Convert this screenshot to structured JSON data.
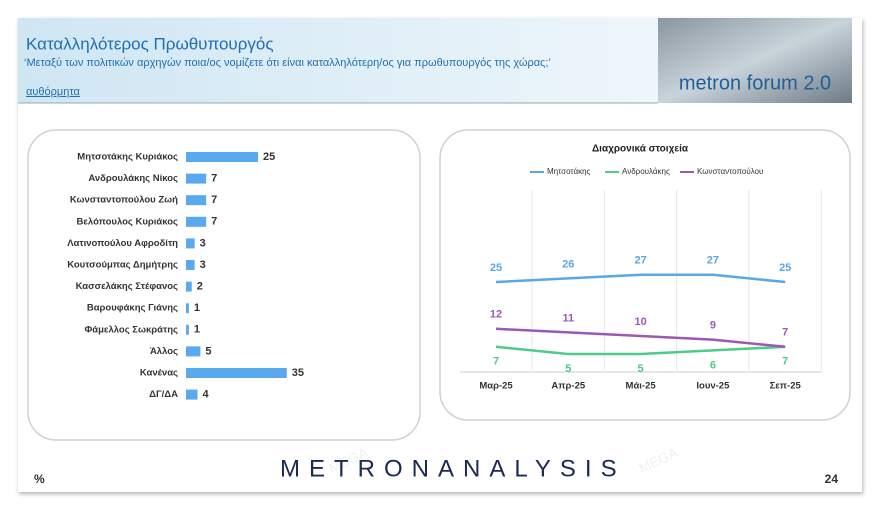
{
  "header": {
    "title": "Καταλληλότερος Πρωθυπουργός",
    "subtitle": "‘Μεταξύ των πολιτικών αρχηγών ποια/ος νομίζετε ότι είναι καταλληλότερη/ος για πρωθυπουργός της χώρας;’",
    "note": "αυθόρμητα",
    "logo": "metron forum 2.0"
  },
  "watermark": "MEGA",
  "chart_data": [
    {
      "type": "hbar",
      "color": "#5aa9ee",
      "categories": [
        "Μητσοτάκης Κυριάκος",
        "Ανδρουλάκης Νίκος",
        "Κωνσταντοπούλου Ζωή",
        "Βελόπουλος Κυριάκος",
        "Λατινοπούλου Αφροδίτη",
        "Κουτσούμπας Δημήτρης",
        "Κασσελάκης Στέφανος",
        "Βαρουφάκης Γιάνης",
        "Φάμελλος Σωκράτης",
        "Άλλος",
        "Κανένας",
        "ΔΓ/ΔΑ"
      ],
      "values": [
        25,
        7,
        7,
        7,
        3,
        3,
        2,
        1,
        1,
        5,
        35,
        4
      ]
    },
    {
      "type": "line",
      "title": "Διαχρονικά στοιχεία",
      "categories": [
        "Μαρ-25",
        "Απρ-25",
        "Μάι-25",
        "Ιουν-25",
        "Σεπ-25"
      ],
      "series": [
        {
          "name": "Μητσοτάκης",
          "color": "#5aa7e6",
          "values": [
            25,
            26,
            27,
            27,
            25
          ]
        },
        {
          "name": "Ανδρουλάκης",
          "color": "#4ecb8a",
          "values": [
            7,
            5,
            5,
            6,
            7
          ]
        },
        {
          "name": "Κωνσταντοπούλου",
          "color": "#9b59b6",
          "values": [
            12,
            11,
            10,
            9,
            7
          ]
        }
      ]
    }
  ],
  "footer": {
    "brand": "METRONANALYSIS",
    "unit": "%",
    "page": "24"
  }
}
